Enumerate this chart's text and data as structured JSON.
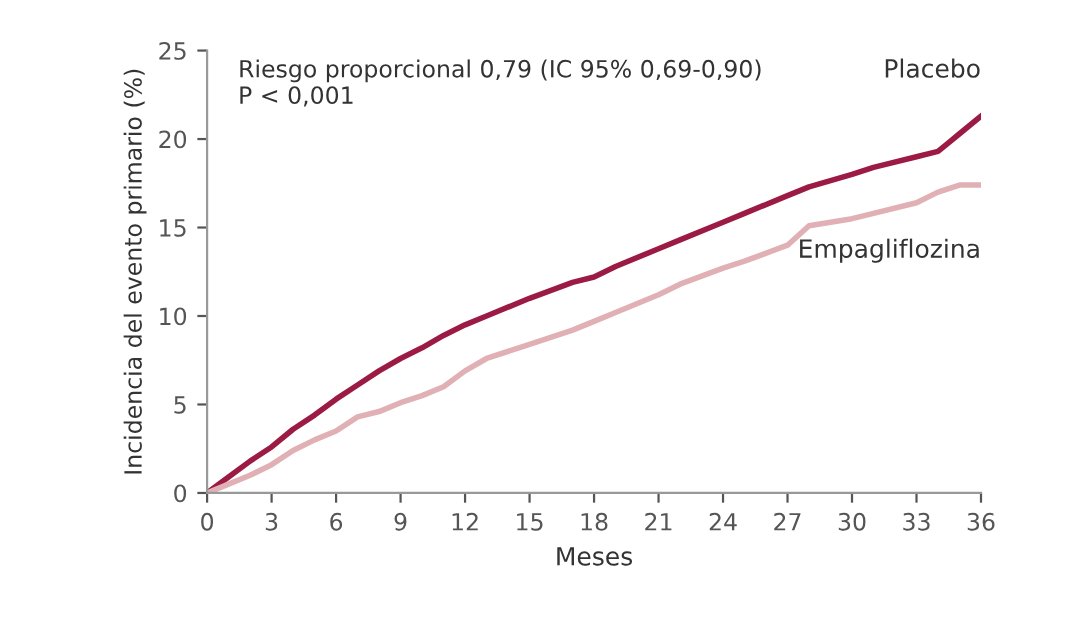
{
  "chart_data": {
    "type": "line",
    "xlabel": "Meses",
    "ylabel": "Incidencia del evento primario (%)",
    "annotations": [
      "Riesgo proporcional 0,79 (IC 95% 0,69-0,90)\nP < 0,001"
    ],
    "xlim": [
      0,
      36
    ],
    "xticks": [
      0,
      3,
      6,
      9,
      12,
      15,
      18,
      21,
      24,
      27,
      30,
      33,
      36
    ],
    "ylim": [
      0,
      25
    ],
    "yticks": [
      0,
      5,
      10,
      15,
      20,
      25
    ],
    "grid": false,
    "legend": false,
    "series": [
      {
        "name": "Placebo",
        "color": "#9b1b45",
        "x": [
          0,
          1,
          2,
          3,
          4,
          5,
          6,
          7,
          8,
          9,
          10,
          11,
          12,
          13,
          15,
          17,
          18,
          19,
          21,
          22,
          24,
          25,
          27,
          28,
          30,
          31,
          33,
          34,
          34.5,
          35,
          36
        ],
        "values": [
          0,
          0.9,
          1.8,
          2.6,
          3.6,
          4.4,
          5.3,
          6.1,
          6.9,
          7.6,
          8.2,
          8.9,
          9.5,
          10.0,
          11.0,
          11.9,
          12.2,
          12.8,
          13.8,
          14.3,
          15.3,
          15.8,
          16.8,
          17.3,
          18.0,
          18.4,
          19.0,
          19.3,
          19.8,
          20.3,
          21.3
        ]
      },
      {
        "name": "Empagliflozina",
        "color": "#e0b0b5",
        "x": [
          0,
          1,
          2,
          3,
          4,
          5,
          6,
          7,
          8,
          9,
          10,
          11,
          12,
          13,
          15,
          17,
          18,
          19,
          21,
          22,
          24,
          25,
          27,
          28,
          30,
          31,
          33,
          34,
          35,
          36
        ],
        "values": [
          0,
          0.5,
          1.0,
          1.6,
          2.4,
          3.0,
          3.5,
          4.3,
          4.6,
          5.1,
          5.5,
          6.0,
          6.9,
          7.6,
          8.4,
          9.2,
          9.7,
          10.2,
          11.2,
          11.8,
          12.7,
          13.1,
          14.0,
          15.1,
          15.5,
          15.8,
          16.4,
          17.0,
          17.4,
          17.4
        ]
      }
    ]
  }
}
